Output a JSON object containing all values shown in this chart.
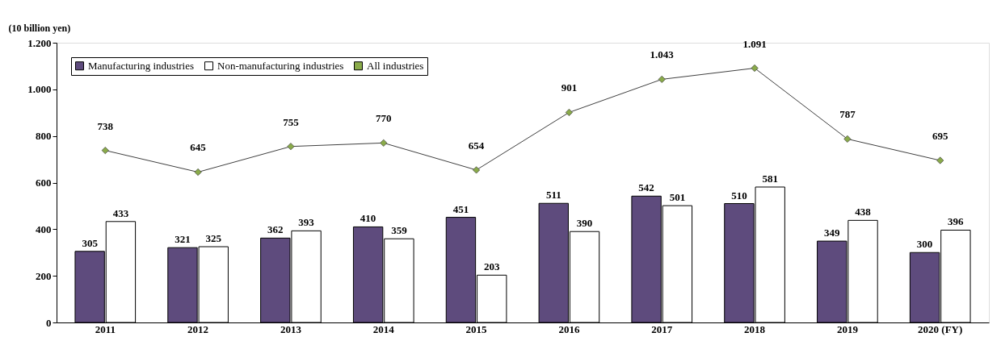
{
  "chart_data": {
    "type": "bar",
    "ylabel": "(10 billion yen)",
    "categories": [
      "2011",
      "2012",
      "2013",
      "2014",
      "2015",
      "2016",
      "2017",
      "2018",
      "2019",
      "2020 (FY)"
    ],
    "series": [
      {
        "name": "Manufacturing industries",
        "color": "#5e4b7d",
        "values": [
          305,
          321,
          362,
          410,
          451,
          511,
          542,
          510,
          349,
          300
        ],
        "value_labels": [
          "305",
          "321",
          "362",
          "410",
          "451",
          "511",
          "542",
          "510",
          "349",
          "300"
        ]
      },
      {
        "name": "Non-manufacturing industries",
        "color": "#ffffff",
        "values": [
          433,
          325,
          393,
          359,
          203,
          390,
          501,
          581,
          438,
          396
        ],
        "value_labels": [
          "433",
          "325",
          "393",
          "359",
          "203",
          "390",
          "501",
          "581",
          "438",
          "396"
        ]
      },
      {
        "name": "All industries",
        "type": "line",
        "color": "#8aab4a",
        "marker": "diamond",
        "values": [
          738,
          645,
          755,
          770,
          654,
          901,
          1043,
          1091,
          787,
          695
        ],
        "value_labels": [
          "738",
          "645",
          "755",
          "770",
          "654",
          "901",
          "1.043",
          "1.091",
          "787",
          "695"
        ]
      }
    ],
    "ylim": [
      0,
      1200
    ],
    "yticks": [
      0,
      200,
      400,
      600,
      800,
      {
        "value": 1000,
        "label": "1.000"
      },
      {
        "value": 1200,
        "label": "1.200"
      }
    ],
    "grid": false,
    "legend": "top left"
  }
}
